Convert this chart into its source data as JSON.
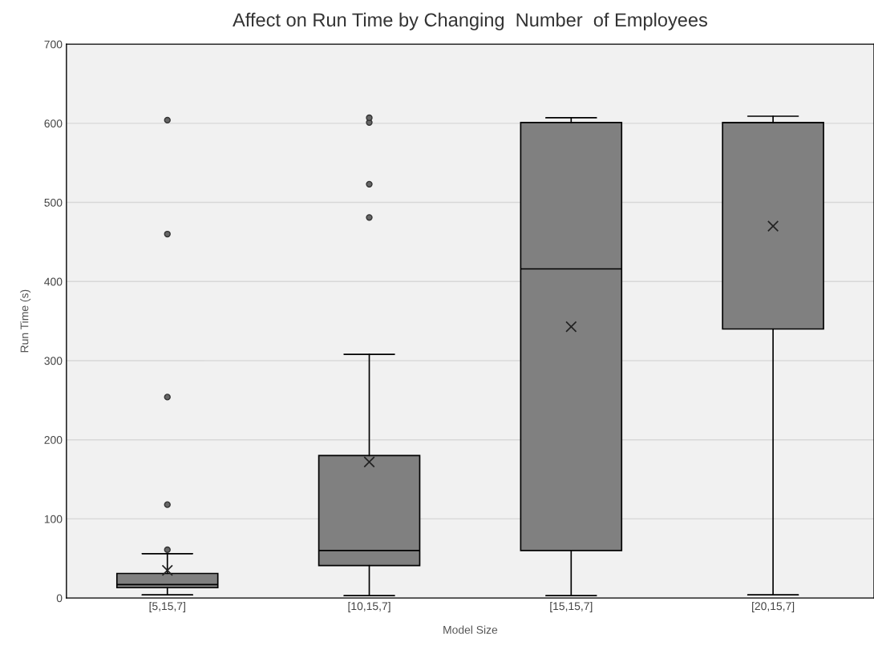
{
  "chart_data": {
    "type": "box",
    "title": "Affect on Run Time by Changing  Number  of Employees",
    "xlabel": "Model Size",
    "ylabel": "Run Time (s)",
    "categories": [
      "[5,15,7]",
      "[10,15,7]",
      "[15,15,7]",
      "[20,15,7]"
    ],
    "series": [
      {
        "color": "#808080",
        "boxes": [
          {
            "low": 4,
            "q1": 13,
            "median": 17,
            "q3": 31,
            "high": 56,
            "mean": 35,
            "outliers": [
              61,
              118,
              254,
              460,
              604
            ]
          },
          {
            "low": 3,
            "q1": 41,
            "median": 60,
            "q3": 180,
            "high": 308,
            "mean": 172,
            "outliers": [
              481,
              523,
              601,
              607
            ]
          },
          {
            "low": 3,
            "q1": 60,
            "median": 416,
            "q3": 601,
            "high": 607,
            "mean": 343
          },
          {
            "low": 4,
            "q1": 340,
            "median": 601,
            "q3": 601,
            "high": 609,
            "mean": 470
          }
        ]
      }
    ],
    "ylim": [
      0,
      700
    ],
    "yticks": [
      0,
      100,
      200,
      300,
      400,
      500,
      600,
      700
    ],
    "grid": "y",
    "marker": "cross"
  }
}
